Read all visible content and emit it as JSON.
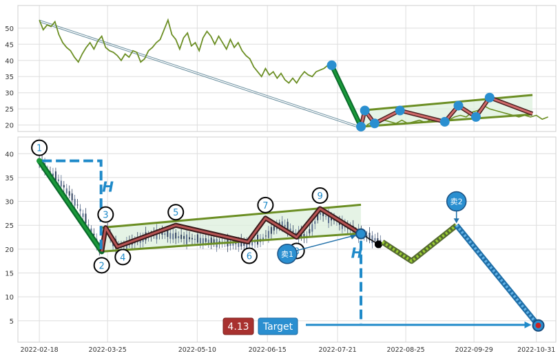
{
  "chart_data": [
    {
      "type": "line",
      "panel": "top",
      "ylim": [
        18,
        57
      ],
      "xlim": [
        "2022-02-07",
        "2022-11-10"
      ],
      "yticks": [
        20,
        25,
        30,
        35,
        40,
        45,
        50
      ],
      "grid": true,
      "series": [
        {
          "role": "close",
          "color": "#6b8e23",
          "points": [
            [
              "2022-02-18",
              52.5
            ],
            [
              "2022-02-20",
              49.5
            ],
            [
              "2022-02-22",
              51
            ],
            [
              "2022-02-24",
              50.5
            ],
            [
              "2022-02-26",
              52
            ],
            [
              "2022-02-28",
              48
            ],
            [
              "2022-03-02",
              45.5
            ],
            [
              "2022-03-04",
              44
            ],
            [
              "2022-03-06",
              43
            ],
            [
              "2022-03-08",
              41
            ],
            [
              "2022-03-10",
              39.5
            ],
            [
              "2022-03-12",
              42
            ],
            [
              "2022-03-14",
              44
            ],
            [
              "2022-03-16",
              45.5
            ],
            [
              "2022-03-18",
              43.5
            ],
            [
              "2022-03-20",
              46
            ],
            [
              "2022-03-22",
              47.5
            ],
            [
              "2022-03-24",
              44
            ],
            [
              "2022-03-26",
              43
            ],
            [
              "2022-03-28",
              42.5
            ],
            [
              "2022-03-30",
              41.5
            ],
            [
              "2022-04-01",
              40
            ],
            [
              "2022-04-03",
              42
            ],
            [
              "2022-04-05",
              41
            ],
            [
              "2022-04-07",
              43
            ],
            [
              "2022-04-09",
              42.5
            ],
            [
              "2022-04-11",
              39.5
            ],
            [
              "2022-04-13",
              40.5
            ],
            [
              "2022-04-15",
              43
            ],
            [
              "2022-04-17",
              44
            ],
            [
              "2022-04-19",
              45.5
            ],
            [
              "2022-04-21",
              46.5
            ],
            [
              "2022-04-23",
              49.5
            ],
            [
              "2022-04-25",
              52.5
            ],
            [
              "2022-04-27",
              48
            ],
            [
              "2022-04-29",
              46.5
            ],
            [
              "2022-05-01",
              43.5
            ],
            [
              "2022-05-03",
              47
            ],
            [
              "2022-05-05",
              48.5
            ],
            [
              "2022-05-07",
              44.5
            ],
            [
              "2022-05-09",
              45.5
            ],
            [
              "2022-05-11",
              43
            ],
            [
              "2022-05-13",
              47
            ],
            [
              "2022-05-15",
              49
            ],
            [
              "2022-05-17",
              47.5
            ],
            [
              "2022-05-19",
              45
            ],
            [
              "2022-05-21",
              47.5
            ],
            [
              "2022-05-23",
              45.5
            ],
            [
              "2022-05-25",
              43.5
            ],
            [
              "2022-05-27",
              46.5
            ],
            [
              "2022-05-29",
              44
            ],
            [
              "2022-05-31",
              45.5
            ],
            [
              "2022-06-02",
              43
            ],
            [
              "2022-06-04",
              41.5
            ],
            [
              "2022-06-06",
              40.5
            ],
            [
              "2022-06-08",
              38
            ],
            [
              "2022-06-10",
              36.5
            ],
            [
              "2022-06-12",
              35
            ],
            [
              "2022-06-14",
              37.5
            ],
            [
              "2022-06-16",
              35.5
            ],
            [
              "2022-06-18",
              36.5
            ],
            [
              "2022-06-20",
              34.5
            ],
            [
              "2022-06-22",
              36
            ],
            [
              "2022-06-24",
              34
            ],
            [
              "2022-06-26",
              33
            ],
            [
              "2022-06-28",
              34.5
            ],
            [
              "2022-06-30",
              33
            ],
            [
              "2022-07-02",
              35
            ],
            [
              "2022-07-04",
              36.5
            ],
            [
              "2022-07-06",
              35.5
            ],
            [
              "2022-07-08",
              35
            ],
            [
              "2022-07-10",
              36.5
            ],
            [
              "2022-07-12",
              37
            ],
            [
              "2022-07-14",
              37.5
            ],
            [
              "2022-07-16",
              38.5
            ],
            [
              "2022-07-18",
              37.5
            ]
          ]
        },
        {
          "role": "close-tail",
          "color": "#6b8e23",
          "points": [
            [
              "2022-08-05",
              20
            ],
            [
              "2022-08-08",
              21
            ],
            [
              "2022-08-11",
              20.5
            ],
            [
              "2022-08-14",
              21.5
            ],
            [
              "2022-08-17",
              21
            ],
            [
              "2022-08-20",
              20.5
            ],
            [
              "2022-08-23",
              21.5
            ],
            [
              "2022-08-26",
              20.5
            ],
            [
              "2022-08-29",
              21
            ],
            [
              "2022-09-01",
              21.5
            ],
            [
              "2022-09-04",
              20.8
            ],
            [
              "2022-09-07",
              21.8
            ],
            [
              "2022-09-10",
              21
            ],
            [
              "2022-09-13",
              22
            ],
            [
              "2022-09-16",
              21.5
            ],
            [
              "2022-09-19",
              22.5
            ],
            [
              "2022-09-22",
              23
            ],
            [
              "2022-09-25",
              22.5
            ],
            [
              "2022-09-28",
              24
            ],
            [
              "2022-10-01",
              24.5
            ],
            [
              "2022-10-04",
              26
            ],
            [
              "2022-10-07",
              25
            ],
            [
              "2022-10-10",
              24.5
            ],
            [
              "2022-10-13",
              24
            ],
            [
              "2022-10-16",
              23.5
            ],
            [
              "2022-10-19",
              23
            ],
            [
              "2022-10-22",
              22.5
            ],
            [
              "2022-10-25",
              23
            ],
            [
              "2022-10-28",
              22.5
            ],
            [
              "2022-10-31",
              23
            ],
            [
              "2022-11-03",
              21.8
            ],
            [
              "2022-11-06",
              22.5
            ]
          ]
        }
      ],
      "trend_line": {
        "from": [
          "2022-02-18",
          52.5
        ],
        "to": [
          "2022-08-02",
          19.5
        ]
      },
      "pattern_points": [
        [
          "2022-07-18",
          38.5
        ],
        [
          "2022-08-02",
          19.5
        ],
        [
          "2022-08-04",
          24.5
        ],
        [
          "2022-08-09",
          20.5
        ],
        [
          "2022-08-22",
          24.5
        ],
        [
          "2022-09-14",
          21
        ],
        [
          "2022-09-21",
          26
        ],
        [
          "2022-09-30",
          22.5
        ],
        [
          "2022-10-07",
          28.5
        ],
        [
          "2022-10-29",
          23.5
        ]
      ],
      "channel": {
        "upper": [
          [
            "2022-08-02",
            24.5
          ],
          [
            "2022-10-29",
            29.3
          ]
        ],
        "lower": [
          [
            "2022-08-02",
            19.5
          ],
          [
            "2022-10-29",
            23.3
          ]
        ]
      }
    },
    {
      "type": "candlestick",
      "panel": "bottom",
      "ylim": [
        0.5,
        43.5
      ],
      "xlim": [
        "2022-02-07",
        "2022-11-10"
      ],
      "yticks": [
        5,
        10,
        15,
        20,
        25,
        30,
        35,
        40
      ],
      "xticks": [
        "2022-02-18",
        "2022-03-25",
        "2022-05-10",
        "2022-06-15",
        "2022-07-21",
        "2022-08-25",
        "2022-09-29",
        "2022-10-31"
      ],
      "grid": true,
      "ohlc_segments": [
        [
          "2022-02-18",
          38.5
        ],
        [
          "2022-03-01",
          34
        ],
        [
          "2022-03-10",
          29
        ],
        [
          "2022-03-18",
          23
        ],
        [
          "2022-03-21",
          20
        ],
        [
          "2022-03-25",
          24.5
        ],
        [
          "2022-03-28",
          21
        ],
        [
          "2022-04-01",
          20.5
        ],
        [
          "2022-04-20",
          23.5
        ],
        [
          "2022-05-01",
          22.5
        ],
        [
          "2022-05-20",
          21.5
        ],
        [
          "2022-06-05",
          21
        ],
        [
          "2022-06-12",
          22
        ],
        [
          "2022-06-22",
          25.5
        ],
        [
          "2022-06-29",
          23.5
        ],
        [
          "2022-07-05",
          22.5
        ],
        [
          "2022-07-12",
          27.5
        ],
        [
          "2022-07-20",
          26
        ],
        [
          "2022-07-27",
          24.5
        ],
        [
          "2022-08-01",
          23.5
        ],
        [
          "2022-08-06",
          22.5
        ],
        [
          "2022-08-10",
          22
        ],
        [
          "2022-08-13",
          21.5
        ]
      ],
      "pattern_points": [
        {
          "label": "1",
          "date": "2022-02-18",
          "price": 38.5
        },
        {
          "label": "2",
          "date": "2022-03-22",
          "price": 19.5
        },
        {
          "label": "3",
          "date": "2022-03-24",
          "price": 24.5
        },
        {
          "label": "4",
          "date": "2022-03-30",
          "price": 20.5
        },
        {
          "label": "5",
          "date": "2022-04-29",
          "price": 25
        },
        {
          "label": "6",
          "date": "2022-06-05",
          "price": 21.5
        },
        {
          "label": "7",
          "date": "2022-06-14",
          "price": 26.5
        },
        {
          "label": "8",
          "date": "2022-06-30",
          "price": 22.5
        },
        {
          "label": "9",
          "date": "2022-07-12",
          "price": 28.5
        }
      ],
      "channel": {
        "upper": [
          [
            "2022-03-22",
            24.5
          ],
          [
            "2022-08-02",
            29.3
          ]
        ],
        "lower": [
          [
            "2022-03-22",
            19.5
          ],
          [
            "2022-08-02",
            23.3
          ]
        ]
      },
      "pattern_end": [
        "2022-08-02",
        23.2
      ],
      "last_close": [
        "2022-08-11",
        21
      ],
      "projection": [
        [
          "2022-08-13",
          21.5
        ],
        [
          "2022-08-28",
          17.5
        ],
        [
          "2022-09-20",
          25
        ],
        [
          "2022-11-01",
          4
        ]
      ],
      "target_price": 4.13,
      "target_label": "Target",
      "measure_height_label": "H",
      "sell_labels": [
        "卖1",
        "卖2"
      ]
    }
  ]
}
